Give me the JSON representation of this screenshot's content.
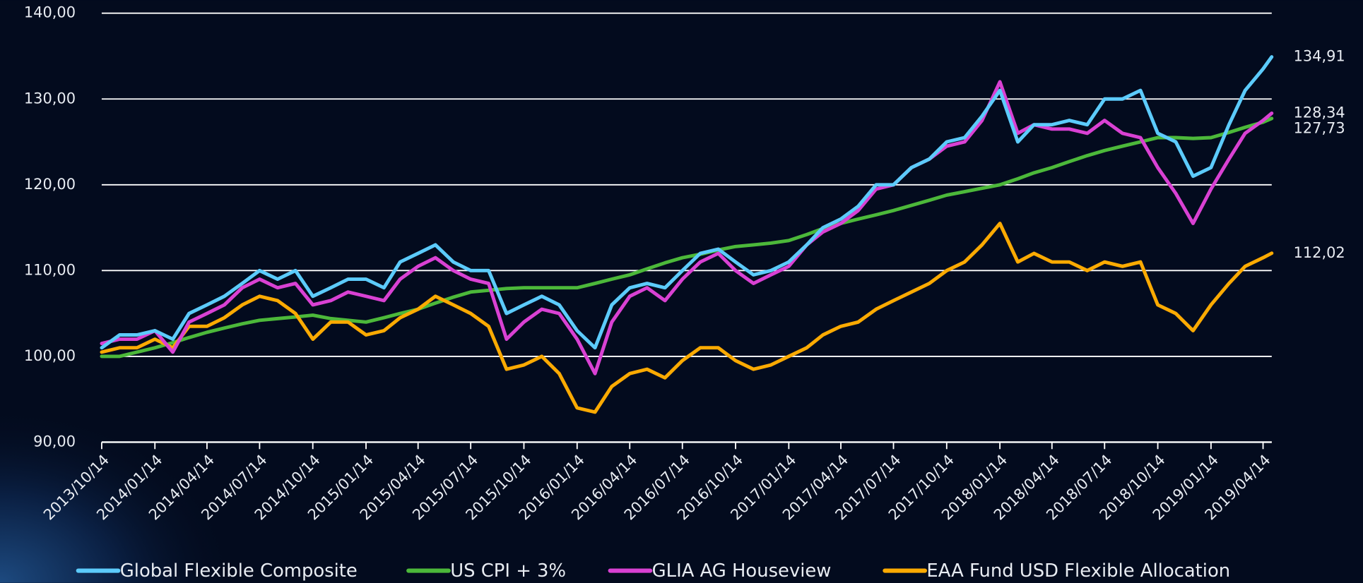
{
  "chart_data": {
    "type": "line",
    "x": [
      "2013/10/14",
      "2013/11/14",
      "2013/12/14",
      "2014/01/14",
      "2014/02/14",
      "2014/03/14",
      "2014/04/14",
      "2014/05/14",
      "2014/06/14",
      "2014/07/14",
      "2014/08/14",
      "2014/09/14",
      "2014/10/14",
      "2014/11/14",
      "2014/12/14",
      "2015/01/14",
      "2015/02/14",
      "2015/03/14",
      "2015/04/14",
      "2015/05/14",
      "2015/06/14",
      "2015/07/14",
      "2015/08/14",
      "2015/09/14",
      "2015/10/14",
      "2015/11/14",
      "2015/12/14",
      "2016/01/14",
      "2016/02/14",
      "2016/03/14",
      "2016/04/14",
      "2016/05/14",
      "2016/06/14",
      "2016/07/14",
      "2016/08/14",
      "2016/09/14",
      "2016/10/14",
      "2016/11/14",
      "2016/12/14",
      "2017/01/14",
      "2017/02/14",
      "2017/03/14",
      "2017/04/14",
      "2017/05/14",
      "2017/06/14",
      "2017/07/14",
      "2017/08/14",
      "2017/09/14",
      "2017/10/14",
      "2017/11/14",
      "2017/12/14",
      "2018/01/14",
      "2018/02/14",
      "2018/03/14",
      "2018/04/14",
      "2018/05/14",
      "2018/06/14",
      "2018/07/14",
      "2018/08/14",
      "2018/09/14",
      "2018/10/14",
      "2018/11/14",
      "2018/12/14",
      "2019/01/14",
      "2019/02/14",
      "2019/03/14",
      "2019/04/14",
      "2019/04/29"
    ],
    "series": [
      {
        "name": "Global Flexible Composite",
        "color": "#5ccbfb",
        "values": [
          101,
          102.5,
          102.5,
          103,
          102,
          105,
          106,
          107,
          108.5,
          110,
          109,
          110,
          107,
          108,
          109,
          109,
          108,
          111,
          112,
          113,
          111,
          110,
          110,
          105,
          106,
          107,
          106,
          103,
          101,
          106,
          108,
          108.5,
          108,
          110,
          112,
          112.5,
          111,
          109.5,
          110,
          111,
          113,
          115,
          116,
          117.5,
          120,
          120,
          122,
          123,
          125,
          125.5,
          128,
          131,
          125,
          127,
          127,
          127.5,
          127,
          130,
          130,
          131,
          126,
          125,
          121,
          122,
          127,
          131,
          133.5,
          134.91
        ],
        "value_labels": [
          null,
          null,
          null,
          null,
          null,
          null,
          null,
          null,
          null,
          null,
          null,
          null,
          null,
          null,
          null,
          null,
          null,
          null,
          null,
          null,
          null,
          null,
          null,
          null,
          null,
          null,
          null,
          null,
          null,
          null,
          null,
          null,
          null,
          null,
          null,
          null,
          null,
          null,
          null,
          null,
          null,
          null,
          null,
          null,
          null,
          null,
          null,
          null,
          null,
          null,
          null,
          null,
          null,
          null,
          null,
          null,
          null,
          null,
          null,
          null,
          null,
          null,
          null,
          null,
          null,
          null,
          null,
          "134,91"
        ]
      },
      {
        "name": "US CPI + 3%",
        "color": "#4cb83a",
        "values": [
          100,
          100,
          100.5,
          101,
          101.6,
          102.2,
          102.8,
          103.3,
          103.8,
          104.2,
          104.4,
          104.6,
          104.8,
          104.4,
          104.2,
          104,
          104.5,
          105,
          105.5,
          106.2,
          106.9,
          107.5,
          107.7,
          107.9,
          108,
          108,
          108,
          108,
          108.5,
          109,
          109.5,
          110.2,
          110.9,
          111.5,
          111.9,
          112.4,
          112.8,
          113,
          113.2,
          113.5,
          114.2,
          114.9,
          115.5,
          116,
          116.5,
          117,
          117.6,
          118.2,
          118.8,
          119.2,
          119.6,
          120,
          120.7,
          121.4,
          122,
          122.7,
          123.4,
          124,
          124.5,
          125,
          125.5,
          125.5,
          125.4,
          125.5,
          126.1,
          126.7,
          127.3,
          127.73
        ],
        "value_labels": [
          null,
          null,
          null,
          null,
          null,
          null,
          null,
          null,
          null,
          null,
          null,
          null,
          null,
          null,
          null,
          null,
          null,
          null,
          null,
          null,
          null,
          null,
          null,
          null,
          null,
          null,
          null,
          null,
          null,
          null,
          null,
          null,
          null,
          null,
          null,
          null,
          null,
          null,
          null,
          null,
          null,
          null,
          null,
          null,
          null,
          null,
          null,
          null,
          null,
          null,
          null,
          null,
          null,
          null,
          null,
          null,
          null,
          null,
          null,
          null,
          null,
          null,
          null,
          null,
          null,
          null,
          null,
          "127,73"
        ]
      },
      {
        "name": "GLIA AG Houseview",
        "color": "#d941d3",
        "values": [
          101.5,
          102,
          102,
          103,
          100.5,
          104,
          105,
          106,
          108,
          109,
          108,
          108.5,
          106,
          106.5,
          107.5,
          107,
          106.5,
          109,
          110.5,
          111.5,
          110,
          109,
          108.5,
          102,
          104,
          105.5,
          105,
          102,
          98,
          104,
          107,
          108,
          106.5,
          109,
          111,
          112,
          110,
          108.5,
          109.5,
          110.5,
          113,
          114.5,
          115.5,
          117,
          119.5,
          120,
          122,
          123,
          124.5,
          125,
          127.5,
          132,
          126,
          127,
          126.5,
          126.5,
          126,
          127.5,
          126,
          125.5,
          122,
          119,
          115.5,
          119.5,
          123,
          126,
          127.5,
          128.34
        ],
        "value_labels": [
          null,
          null,
          null,
          null,
          null,
          null,
          null,
          null,
          null,
          null,
          null,
          null,
          null,
          null,
          null,
          null,
          null,
          null,
          null,
          null,
          null,
          null,
          null,
          null,
          null,
          null,
          null,
          null,
          null,
          null,
          null,
          null,
          null,
          null,
          null,
          null,
          null,
          null,
          null,
          null,
          null,
          null,
          null,
          null,
          null,
          null,
          null,
          null,
          null,
          null,
          null,
          null,
          null,
          null,
          null,
          null,
          null,
          null,
          null,
          null,
          null,
          null,
          null,
          null,
          null,
          null,
          null,
          "128,34"
        ]
      },
      {
        "name": "EAA Fund USD Flexible Allocation",
        "color": "#fbaa02",
        "values": [
          100.5,
          101,
          101,
          102,
          101,
          103.5,
          103.5,
          104.5,
          106,
          107,
          106.5,
          105,
          102,
          104,
          104,
          102.5,
          103,
          104.5,
          105.5,
          107,
          106,
          105,
          103.5,
          98.5,
          99,
          100,
          98,
          94,
          93.5,
          96.5,
          98,
          98.5,
          97.5,
          99.5,
          101,
          101,
          99.5,
          98.5,
          99,
          100,
          101,
          102.5,
          103.5,
          104,
          105.5,
          106.5,
          107.5,
          108.5,
          110,
          111,
          113,
          115.5,
          111,
          112,
          111,
          111,
          110,
          111,
          110.5,
          111,
          106,
          105,
          103,
          106,
          108.5,
          110.5,
          111.5,
          112.02
        ],
        "value_labels": [
          null,
          null,
          null,
          null,
          null,
          null,
          null,
          null,
          null,
          null,
          null,
          null,
          null,
          null,
          null,
          null,
          null,
          null,
          null,
          null,
          null,
          null,
          null,
          null,
          null,
          null,
          null,
          null,
          null,
          null,
          null,
          null,
          null,
          null,
          null,
          null,
          null,
          null,
          null,
          null,
          null,
          null,
          null,
          null,
          null,
          null,
          null,
          null,
          null,
          null,
          null,
          null,
          null,
          null,
          null,
          null,
          null,
          null,
          null,
          null,
          null,
          null,
          null,
          null,
          null,
          null,
          null,
          "112,02"
        ]
      }
    ],
    "xlim": [
      "2013/10/14",
      "2019/04/29"
    ],
    "xticks": [
      "2013/10/14",
      "2014/01/14",
      "2014/04/14",
      "2014/07/14",
      "2014/10/14",
      "2015/01/14",
      "2015/04/14",
      "2015/07/14",
      "2015/10/14",
      "2016/01/14",
      "2016/04/14",
      "2016/07/14",
      "2016/10/14",
      "2017/01/14",
      "2017/04/14",
      "2017/07/14",
      "2017/10/14",
      "2018/01/14",
      "2018/04/14",
      "2018/07/14",
      "2018/10/14",
      "2019/01/14",
      "2019/04/14"
    ],
    "ylim": [
      90,
      140
    ],
    "yticks": [
      {
        "value": 90,
        "label": "90,00"
      },
      {
        "value": 100,
        "label": "100,00"
      },
      {
        "value": 110,
        "label": "110,00"
      },
      {
        "value": 120,
        "label": "120,00"
      },
      {
        "value": 130,
        "label": "130,00"
      },
      {
        "value": 140,
        "label": "140,00"
      }
    ],
    "grid": true,
    "legend": "bottom"
  }
}
